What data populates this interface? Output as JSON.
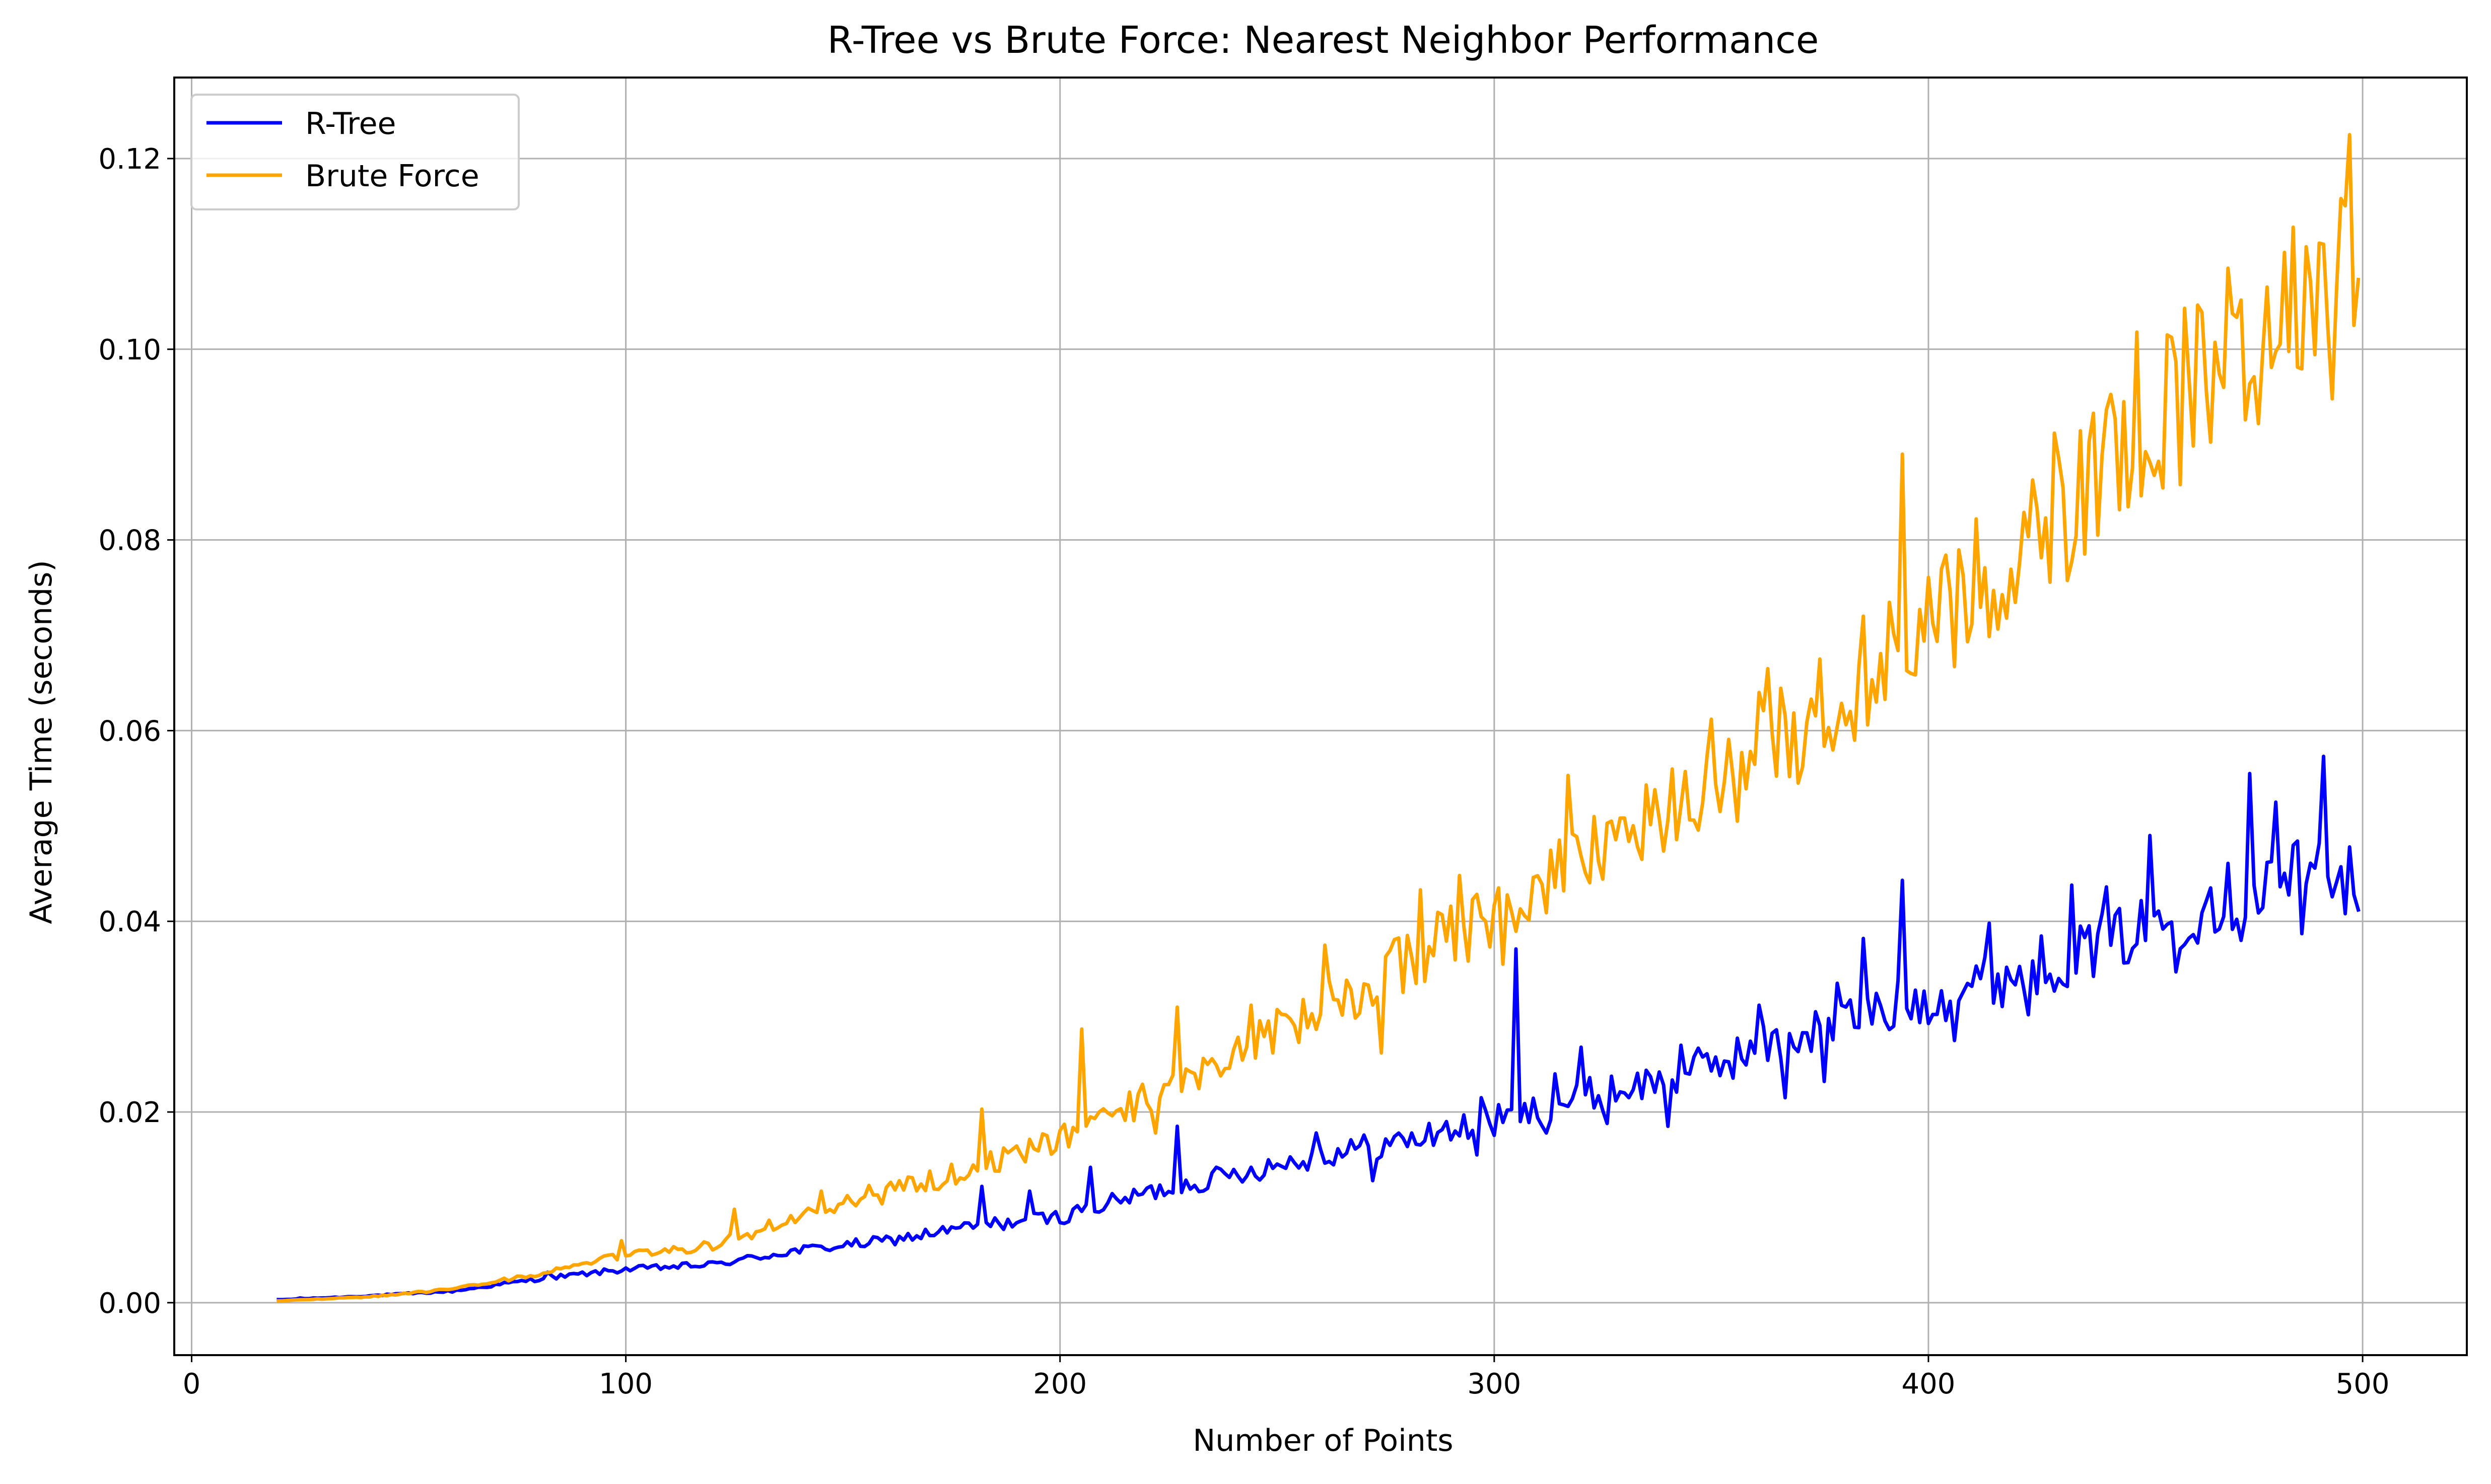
{
  "chart_data": {
    "type": "line",
    "title": "R-Tree vs Brute Force: Nearest Neighbor Performance",
    "xlabel": "Number of Points",
    "ylabel": "Average Time (seconds)",
    "xlim": [
      -4,
      524
    ],
    "ylim": [
      -0.0055,
      0.1285
    ],
    "xticks": [
      0,
      100,
      200,
      300,
      400,
      500
    ],
    "yticks": [
      0.0,
      0.02,
      0.04,
      0.06,
      0.08,
      0.1,
      0.12
    ],
    "xtick_labels": [
      "0",
      "100",
      "200",
      "300",
      "400",
      "500"
    ],
    "ytick_labels": [
      "0.00",
      "0.02",
      "0.04",
      "0.06",
      "0.08",
      "0.10",
      "0.12"
    ],
    "grid": true,
    "legend_position": "upper-left",
    "x_range": [
      20,
      499
    ],
    "series": [
      {
        "name": "R-Tree",
        "color": "#0000ff",
        "anchors": [
          [
            20,
            0.0003
          ],
          [
            40,
            0.0007
          ],
          [
            60,
            0.0012
          ],
          [
            80,
            0.0025
          ],
          [
            100,
            0.0035
          ],
          [
            120,
            0.004
          ],
          [
            140,
            0.0055
          ],
          [
            160,
            0.0065
          ],
          [
            180,
            0.008
          ],
          [
            200,
            0.009
          ],
          [
            220,
            0.0115
          ],
          [
            240,
            0.0135
          ],
          [
            260,
            0.0155
          ],
          [
            280,
            0.017
          ],
          [
            300,
            0.019
          ],
          [
            320,
            0.0215
          ],
          [
            340,
            0.0235
          ],
          [
            360,
            0.0265
          ],
          [
            380,
            0.0295
          ],
          [
            400,
            0.032
          ],
          [
            420,
            0.0345
          ],
          [
            440,
            0.0375
          ],
          [
            460,
            0.041
          ],
          [
            480,
            0.0445
          ],
          [
            499,
            0.0465
          ]
        ],
        "spikes": [
          [
            25,
            0.0005
          ],
          [
            82,
            0.0032
          ],
          [
            182,
            0.0122
          ],
          [
            193,
            0.0117
          ],
          [
            203,
            0.0098
          ],
          [
            207,
            0.0142
          ],
          [
            227,
            0.0185
          ],
          [
            259,
            0.0178
          ],
          [
            289,
            0.019
          ],
          [
            297,
            0.0215
          ],
          [
            305,
            0.0371
          ],
          [
            314,
            0.024
          ],
          [
            320,
            0.0268
          ],
          [
            343,
            0.027
          ],
          [
            361,
            0.0312
          ],
          [
            379,
            0.0335
          ],
          [
            385,
            0.0382
          ],
          [
            394,
            0.0443
          ],
          [
            414,
            0.0398
          ],
          [
            433,
            0.0438
          ],
          [
            441,
            0.0436
          ],
          [
            451,
            0.049
          ],
          [
            465,
            0.0435
          ],
          [
            474,
            0.0555
          ],
          [
            480,
            0.0525
          ],
          [
            491,
            0.0573
          ],
          [
            497,
            0.0478
          ],
          [
            499,
            0.0412
          ]
        ],
        "dips": [
          [
            272,
            0.0128
          ],
          [
            296,
            0.0155
          ],
          [
            306,
            0.019
          ],
          [
            312,
            0.0178
          ],
          [
            326,
            0.0188
          ],
          [
            340,
            0.0185
          ],
          [
            367,
            0.0215
          ],
          [
            376,
            0.0232
          ],
          [
            392,
            0.029
          ],
          [
            406,
            0.0275
          ],
          [
            423,
            0.0302
          ],
          [
            457,
            0.0347
          ],
          [
            472,
            0.038
          ],
          [
            486,
            0.0387
          ],
          [
            496,
            0.0408
          ]
        ]
      },
      {
        "name": "Brute Force",
        "color": "#ffa500",
        "anchors": [
          [
            20,
            0.0002
          ],
          [
            40,
            0.0006
          ],
          [
            60,
            0.0014
          ],
          [
            80,
            0.003
          ],
          [
            100,
            0.005
          ],
          [
            120,
            0.006
          ],
          [
            140,
            0.009
          ],
          [
            160,
            0.0115
          ],
          [
            180,
            0.014
          ],
          [
            200,
            0.017
          ],
          [
            220,
            0.0215
          ],
          [
            240,
            0.026
          ],
          [
            260,
            0.0305
          ],
          [
            280,
            0.036
          ],
          [
            300,
            0.0405
          ],
          [
            320,
            0.046
          ],
          [
            340,
            0.052
          ],
          [
            360,
            0.0585
          ],
          [
            380,
            0.0635
          ],
          [
            400,
            0.071
          ],
          [
            420,
            0.078
          ],
          [
            440,
            0.0865
          ],
          [
            460,
            0.096
          ],
          [
            480,
            0.103
          ],
          [
            499,
            0.107
          ]
        ],
        "spikes": [
          [
            99,
            0.0065
          ],
          [
            125,
            0.0098
          ],
          [
            145,
            0.0117
          ],
          [
            156,
            0.0123
          ],
          [
            182,
            0.0203
          ],
          [
            205,
            0.0287
          ],
          [
            227,
            0.031
          ],
          [
            244,
            0.0312
          ],
          [
            261,
            0.0375
          ],
          [
            283,
            0.0433
          ],
          [
            292,
            0.0448
          ],
          [
            317,
            0.0553
          ],
          [
            337,
            0.0538
          ],
          [
            350,
            0.0612
          ],
          [
            363,
            0.0665
          ],
          [
            375,
            0.0675
          ],
          [
            385,
            0.072
          ],
          [
            394,
            0.089
          ],
          [
            411,
            0.0822
          ],
          [
            429,
            0.0912
          ],
          [
            448,
            0.1018
          ],
          [
            459,
            0.1043
          ],
          [
            469,
            0.1085
          ],
          [
            484,
            0.1128
          ],
          [
            495,
            0.1158
          ],
          [
            497,
            0.1225
          ],
          [
            499,
            0.1073
          ]
        ],
        "dips": [
          [
            186,
            0.0138
          ],
          [
            222,
            0.0178
          ],
          [
            249,
            0.0262
          ],
          [
            274,
            0.0262
          ],
          [
            302,
            0.0355
          ],
          [
            334,
            0.0465
          ],
          [
            356,
            0.0505
          ],
          [
            370,
            0.0545
          ],
          [
            396,
            0.066
          ],
          [
            418,
            0.0718
          ],
          [
            439,
            0.0805
          ],
          [
            458,
            0.0858
          ],
          [
            476,
            0.0922
          ],
          [
            493,
            0.0948
          ],
          [
            498,
            0.1025
          ]
        ]
      }
    ],
    "noise_amplitude_ratio": 0.09
  }
}
